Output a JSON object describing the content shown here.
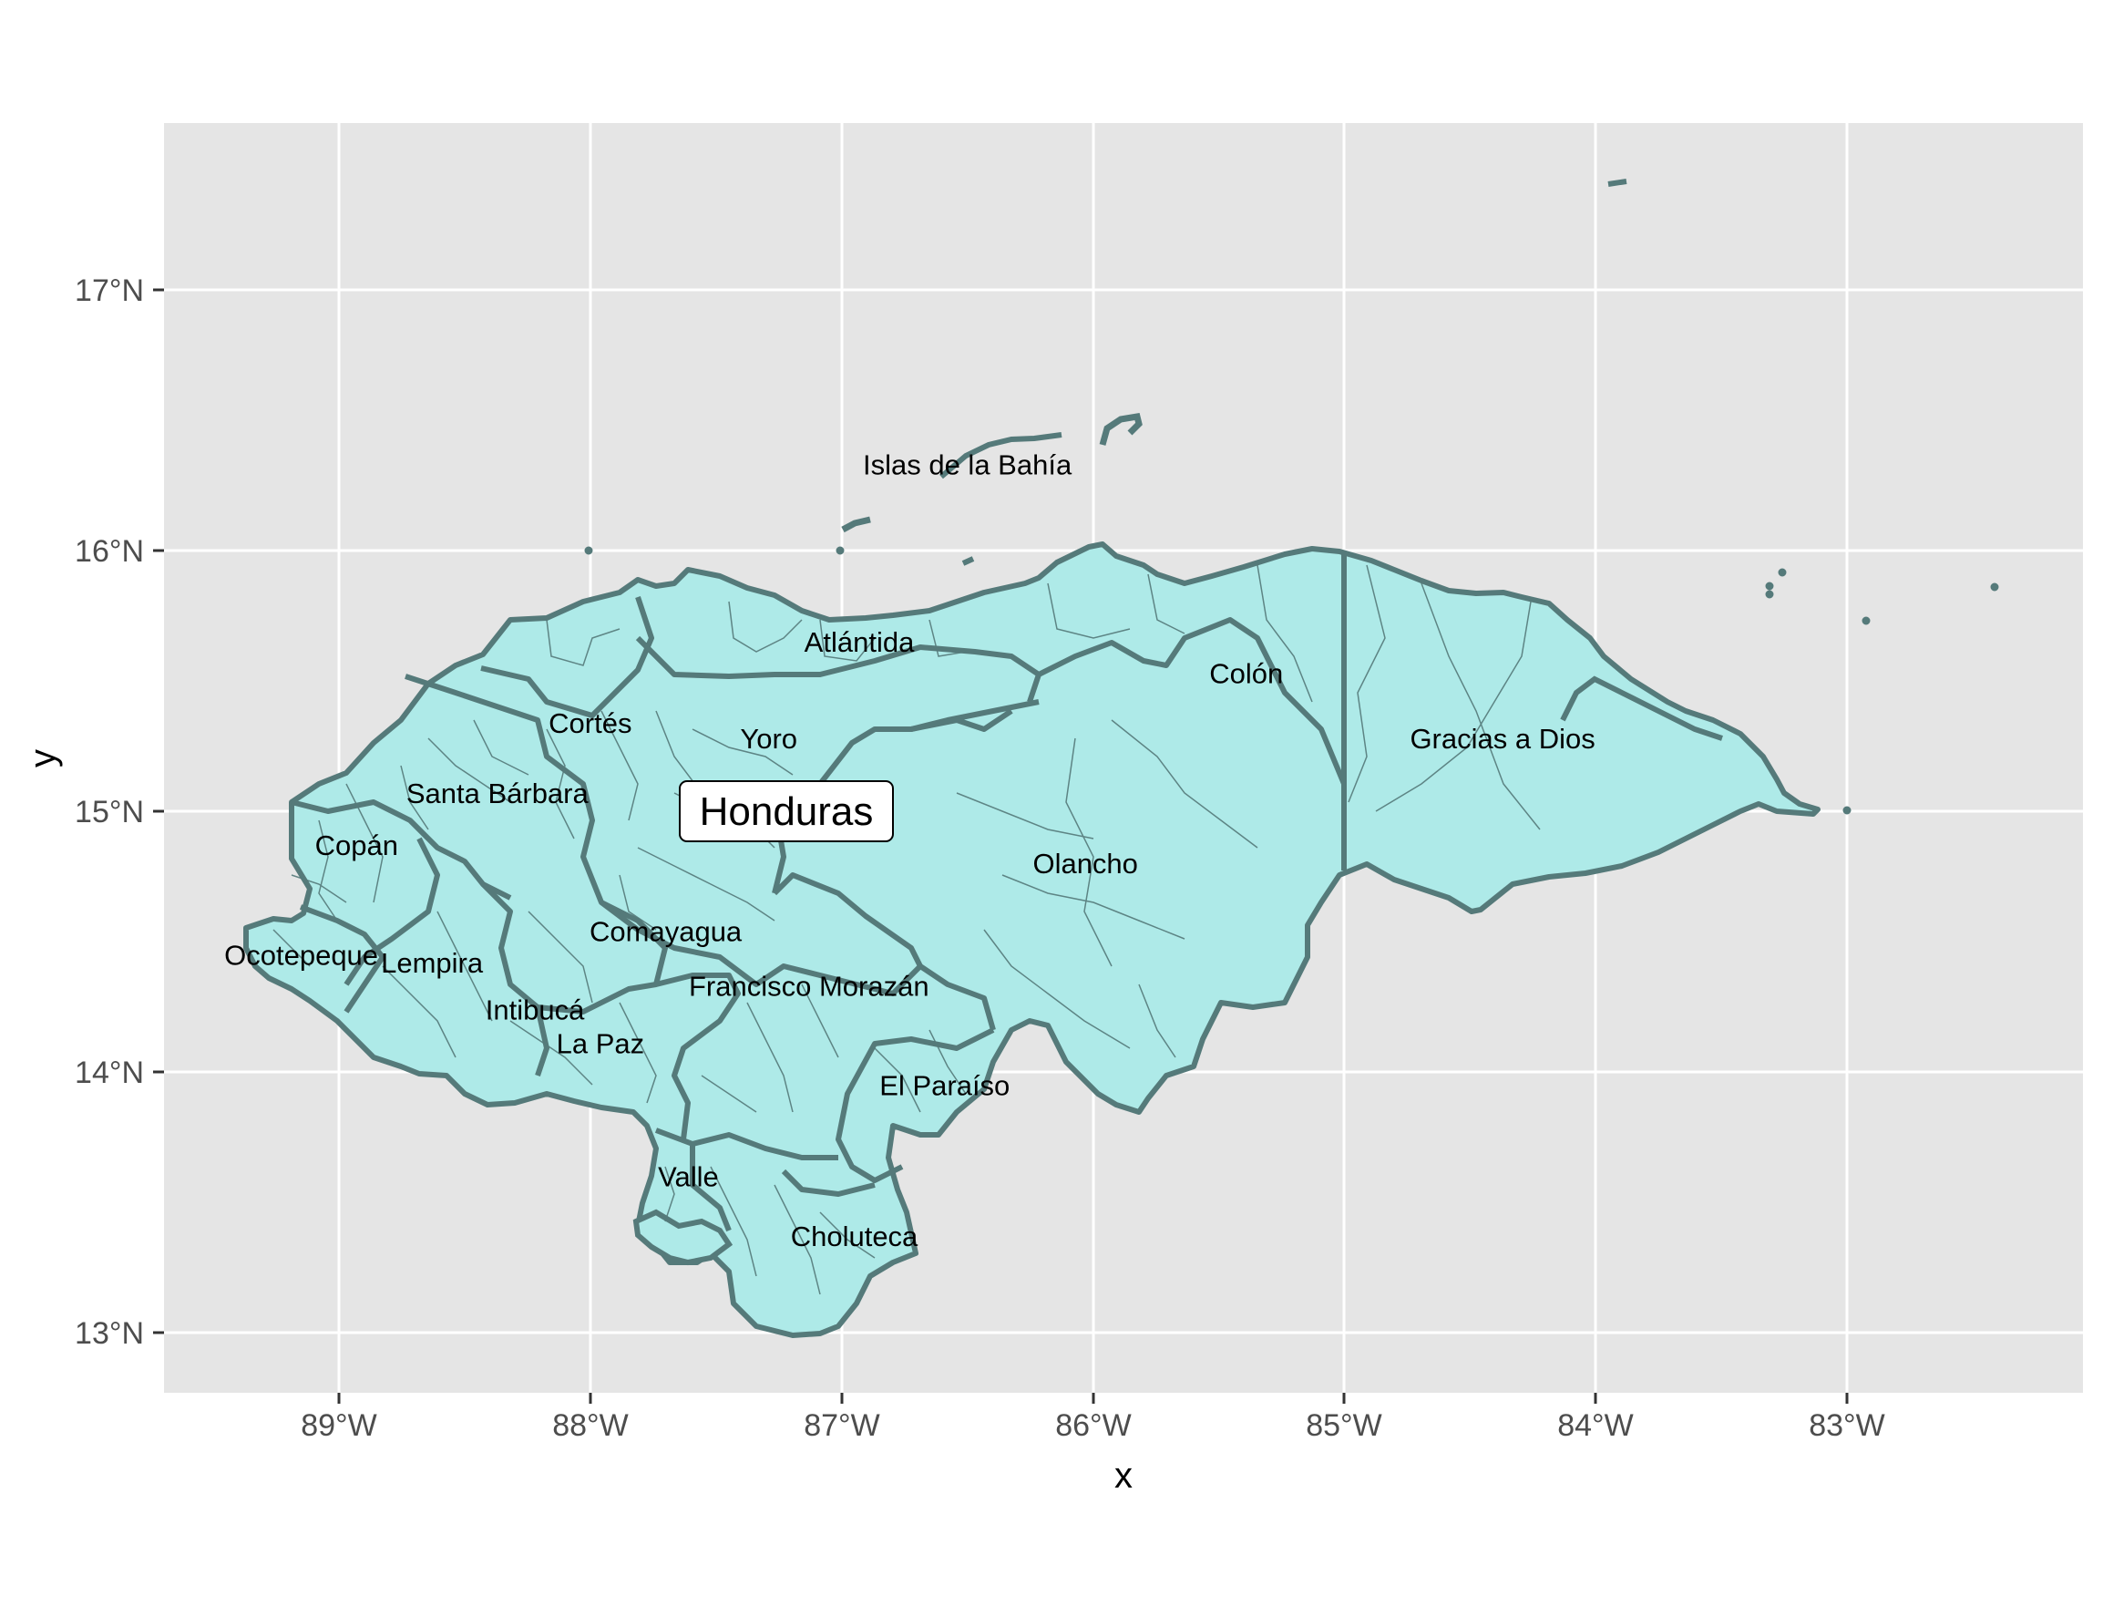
{
  "map": {
    "xlabel": "x",
    "ylabel": "y",
    "x_ticks": [
      "89°W",
      "88°W",
      "87°W",
      "86°W",
      "85°W",
      "84°W",
      "83°W"
    ],
    "y_ticks": [
      "17°N",
      "16°N",
      "15°N",
      "14°N",
      "13°N"
    ],
    "country_label": "Honduras",
    "colors": {
      "panel": "#e5e5e5",
      "grid": "#ffffff",
      "fill": "#aeeae8",
      "border": "#557a7a"
    },
    "departments": [
      {
        "name": "Islas de la Bahía",
        "lon": -86.5,
        "lat": 16.33
      },
      {
        "name": "Atlántida",
        "lon": -86.93,
        "lat": 15.65
      },
      {
        "name": "Colón",
        "lon": -85.39,
        "lat": 15.53
      },
      {
        "name": "Cortés",
        "lon": -88.0,
        "lat": 15.34
      },
      {
        "name": "Yoro",
        "lon": -87.29,
        "lat": 15.28
      },
      {
        "name": "Gracias a Dios",
        "lon": -84.37,
        "lat": 15.28
      },
      {
        "name": "Santa Bárbara",
        "lon": -88.37,
        "lat": 15.07
      },
      {
        "name": "Copán",
        "lon": -88.93,
        "lat": 14.87
      },
      {
        "name": "Olancho",
        "lon": -86.03,
        "lat": 14.8
      },
      {
        "name": "Comayagua",
        "lon": -87.7,
        "lat": 14.54
      },
      {
        "name": "Ocotepeque",
        "lon": -89.15,
        "lat": 14.45
      },
      {
        "name": "Lempira",
        "lon": -88.63,
        "lat": 14.42
      },
      {
        "name": "Francisco Morazán",
        "lon": -87.13,
        "lat": 14.33
      },
      {
        "name": "Intibucá",
        "lon": -88.22,
        "lat": 14.24
      },
      {
        "name": "La Paz",
        "lon": -87.96,
        "lat": 14.11
      },
      {
        "name": "El Paraíso",
        "lon": -86.59,
        "lat": 13.95
      },
      {
        "name": "Valle",
        "lon": -87.61,
        "lat": 13.6
      },
      {
        "name": "Choluteca",
        "lon": -86.95,
        "lat": 13.37
      }
    ]
  }
}
